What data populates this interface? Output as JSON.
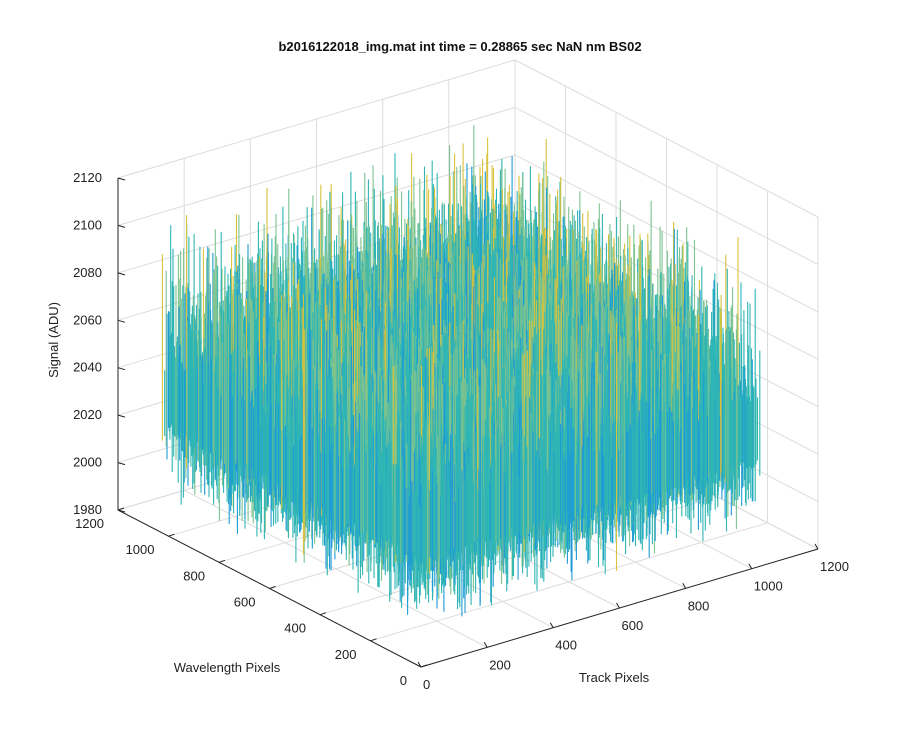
{
  "chart_data": {
    "type": "surface",
    "title": "b2016122018_img.mat int time = 0.28865 sec  NaN nm BS02",
    "xlabel": "Track Pixels",
    "ylabel": "Wavelength Pixels",
    "zlabel": "Signal (ADU)",
    "xlim": [
      0,
      1200
    ],
    "ylim": [
      0,
      1200
    ],
    "zlim": [
      1980,
      2120
    ],
    "x_ticks": [
      "0",
      "200",
      "400",
      "600",
      "800",
      "1000",
      "1200"
    ],
    "y_ticks": [
      "0",
      "200",
      "400",
      "600",
      "800",
      "1000",
      "1200"
    ],
    "z_ticks": [
      "1980",
      "2000",
      "2020",
      "2040",
      "2060",
      "2080",
      "2100",
      "2120"
    ],
    "x_tick_values": [
      0,
      200,
      400,
      600,
      800,
      1000,
      1200
    ],
    "y_tick_values": [
      0,
      200,
      400,
      600,
      800,
      1000,
      1200
    ],
    "z_tick_values": [
      1980,
      2000,
      2020,
      2040,
      2060,
      2080,
      2100,
      2120
    ],
    "data_extent": {
      "x": [
        0,
        1024
      ],
      "y": [
        0,
        1024
      ]
    },
    "z_baseline": 2035,
    "z_noise_range": [
      1995,
      2110
    ],
    "grid": true,
    "colormap": "parula",
    "colors": {
      "low": "#0d6ec8",
      "mid_low": "#1e9ad6",
      "mid": "#2fb5b4",
      "mid_high": "#7cc38f",
      "high": "#d9c23a",
      "grid": "#dcdcdc",
      "axis": "#222222"
    }
  }
}
